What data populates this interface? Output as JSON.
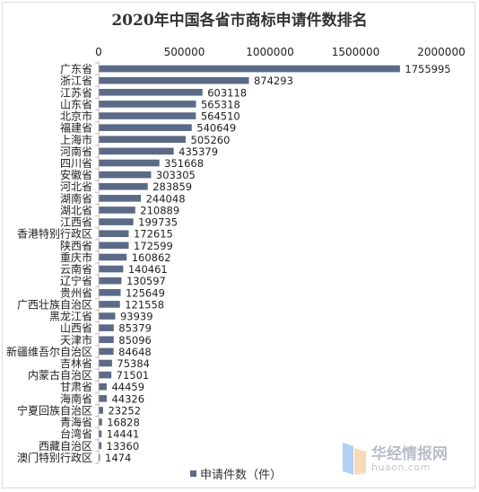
{
  "chart_data": {
    "type": "bar",
    "orientation": "horizontal",
    "title": "2020年中国各省市商标申请件数排名",
    "categories": [
      "广东省",
      "浙江省",
      "江苏省",
      "山东省",
      "北京市",
      "福建省",
      "上海市",
      "河南省",
      "四川省",
      "安徽省",
      "河北省",
      "湖南省",
      "湖北省",
      "江西省",
      "香港特别行政区",
      "陕西省",
      "重庆市",
      "云南省",
      "辽宁省",
      "贵州省",
      "广西壮族自治区",
      "黑龙江省",
      "山西省",
      "天津市",
      "新疆维吾尔自治区",
      "吉林省",
      "内蒙古自治区",
      "甘肃省",
      "海南省",
      "宁夏回族自治区",
      "青海省",
      "台湾省",
      "西藏自治区",
      "澳门特别行政区"
    ],
    "series": [
      {
        "name": "申请件数（件）",
        "values": [
          1755995,
          874293,
          603118,
          565318,
          564510,
          540649,
          505260,
          435379,
          351668,
          303305,
          283859,
          244048,
          210889,
          199735,
          172615,
          172599,
          160862,
          140461,
          130597,
          125649,
          121558,
          93939,
          85379,
          85096,
          84648,
          75384,
          71501,
          44459,
          44326,
          23252,
          16828,
          14441,
          13360,
          1474
        ]
      }
    ],
    "xlim": [
      0,
      2000000
    ],
    "xticks": [
      0,
      500000,
      1000000,
      1500000,
      2000000
    ],
    "x_axis_position": "top",
    "grid": false,
    "data_labels": true,
    "legend": "bottom",
    "bar_color": "#5b6a86"
  },
  "watermark": {
    "cn": "华经情报网",
    "en": "huaon.com"
  }
}
